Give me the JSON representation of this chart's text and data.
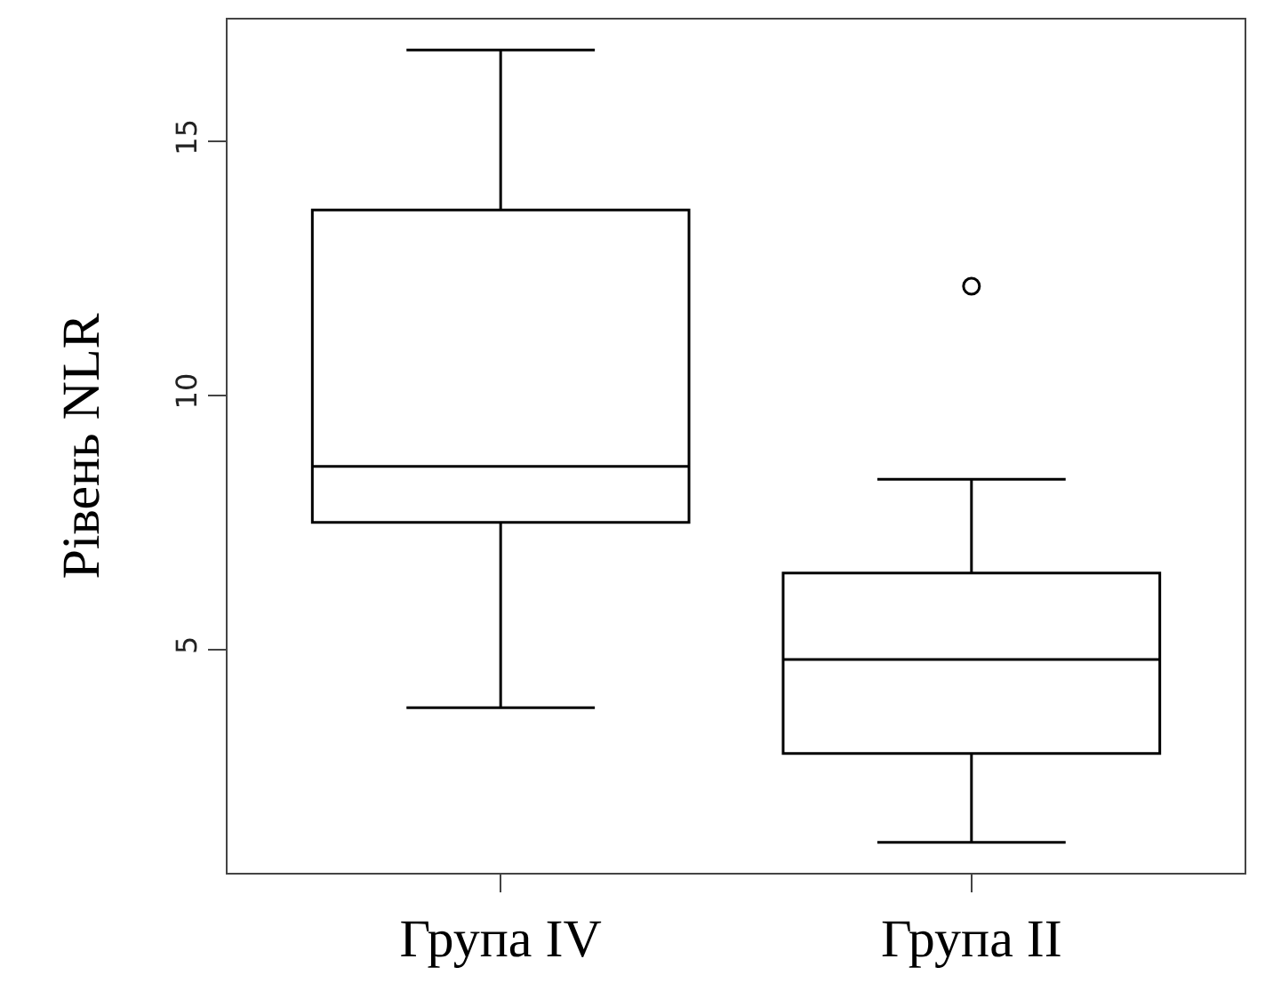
{
  "chart_data": {
    "type": "box",
    "ylabel": "Рівень NLR",
    "categories": [
      "Група IV",
      "Група II"
    ],
    "boxes": [
      {
        "low": 3.85,
        "q1": 7.5,
        "median": 8.6,
        "q3": 13.65,
        "high": 16.8
      },
      {
        "low": 1.2,
        "q1": 2.95,
        "median": 4.8,
        "q3": 6.5,
        "high": 8.35,
        "outliers": [
          12.15
        ]
      }
    ],
    "color": "#000000",
    "ylim": [
      0.6,
      17.4
    ],
    "yticks": [
      5,
      10,
      15
    ]
  }
}
